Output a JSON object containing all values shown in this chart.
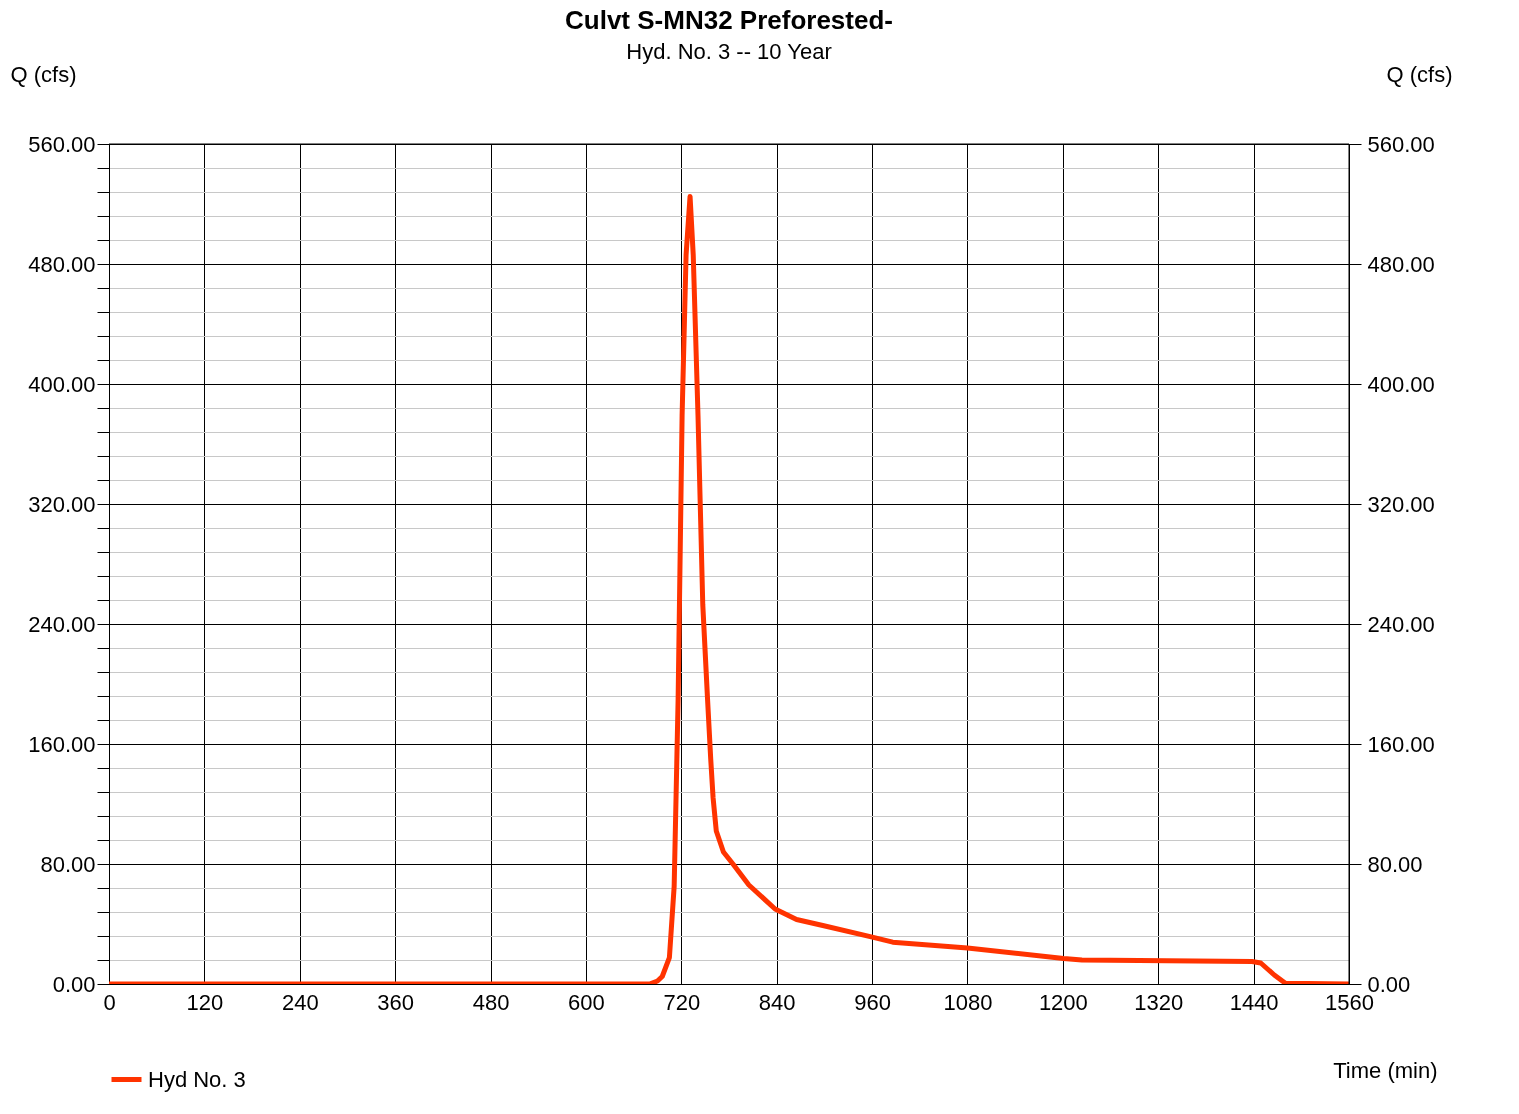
{
  "chart_data": {
    "type": "line",
    "title": "Culvt S-MN32 Preforested-",
    "subtitle": "Hyd. No. 3 -- 10 Year",
    "xlabel": "Time (min)",
    "ylabel": "Q (cfs)",
    "y2label": "Q (cfs)",
    "xlim": [
      0,
      1560
    ],
    "xticks": [
      0,
      120,
      240,
      360,
      480,
      600,
      720,
      840,
      960,
      1080,
      1200,
      1320,
      1440,
      1560
    ],
    "ylim": [
      0,
      560
    ],
    "yticks": [
      {
        "value": 0,
        "label": "0.00"
      },
      {
        "value": 16,
        "label": null
      },
      {
        "value": 32,
        "label": null
      },
      {
        "value": 48,
        "label": null
      },
      {
        "value": 64,
        "label": null
      },
      {
        "value": 80,
        "label": "80.00"
      },
      {
        "value": 96,
        "label": null
      },
      {
        "value": 112,
        "label": null
      },
      {
        "value": 128,
        "label": null
      },
      {
        "value": 144,
        "label": null
      },
      {
        "value": 160,
        "label": "160.00"
      },
      {
        "value": 176,
        "label": null
      },
      {
        "value": 192,
        "label": null
      },
      {
        "value": 208,
        "label": null
      },
      {
        "value": 224,
        "label": null
      },
      {
        "value": 240,
        "label": "240.00"
      },
      {
        "value": 256,
        "label": null
      },
      {
        "value": 272,
        "label": null
      },
      {
        "value": 288,
        "label": null
      },
      {
        "value": 304,
        "label": null
      },
      {
        "value": 320,
        "label": "320.00"
      },
      {
        "value": 336,
        "label": null
      },
      {
        "value": 352,
        "label": null
      },
      {
        "value": 368,
        "label": null
      },
      {
        "value": 384,
        "label": null
      },
      {
        "value": 400,
        "label": "400.00"
      },
      {
        "value": 416,
        "label": null
      },
      {
        "value": 432,
        "label": null
      },
      {
        "value": 448,
        "label": null
      },
      {
        "value": 464,
        "label": null
      },
      {
        "value": 480,
        "label": "480.00"
      },
      {
        "value": 496,
        "label": null
      },
      {
        "value": 512,
        "label": null
      },
      {
        "value": 528,
        "label": null
      },
      {
        "value": 544,
        "label": null
      },
      {
        "value": 560,
        "label": "560.00"
      }
    ],
    "y2lim": [
      0,
      560
    ],
    "y2ticks": [
      {
        "value": 0,
        "label": "0.00"
      },
      {
        "value": 80,
        "label": "80.00"
      },
      {
        "value": 160,
        "label": "160.00"
      },
      {
        "value": 240,
        "label": "240.00"
      },
      {
        "value": 320,
        "label": "320.00"
      },
      {
        "value": 400,
        "label": "400.00"
      },
      {
        "value": 480,
        "label": "480.00"
      },
      {
        "value": 560,
        "label": "560.00"
      }
    ],
    "grid": true,
    "legend": "bottom left",
    "line_style": "solid",
    "series": [
      {
        "name": "Hyd No. 3",
        "color": "#ff3300",
        "x": [
          0,
          600,
          680,
          690,
          696,
          705,
          711,
          716,
          721,
          726,
          731,
          735,
          741,
          747,
          753,
          757,
          760,
          764,
          773,
          785,
          805,
          838,
          865,
          898,
          959,
          986,
          1080,
          1201,
          1224,
          1438,
          1449,
          1466,
          1480,
          1560
        ],
        "values": [
          0,
          0,
          0,
          2,
          5,
          17.6,
          65,
          190,
          379,
          486,
          525,
          486,
          379,
          253,
          190,
          150,
          124,
          102,
          88,
          80,
          66,
          50,
          43,
          39,
          31.4,
          27.9,
          24,
          17,
          16,
          15,
          14,
          6,
          0.5,
          0
        ]
      }
    ]
  }
}
